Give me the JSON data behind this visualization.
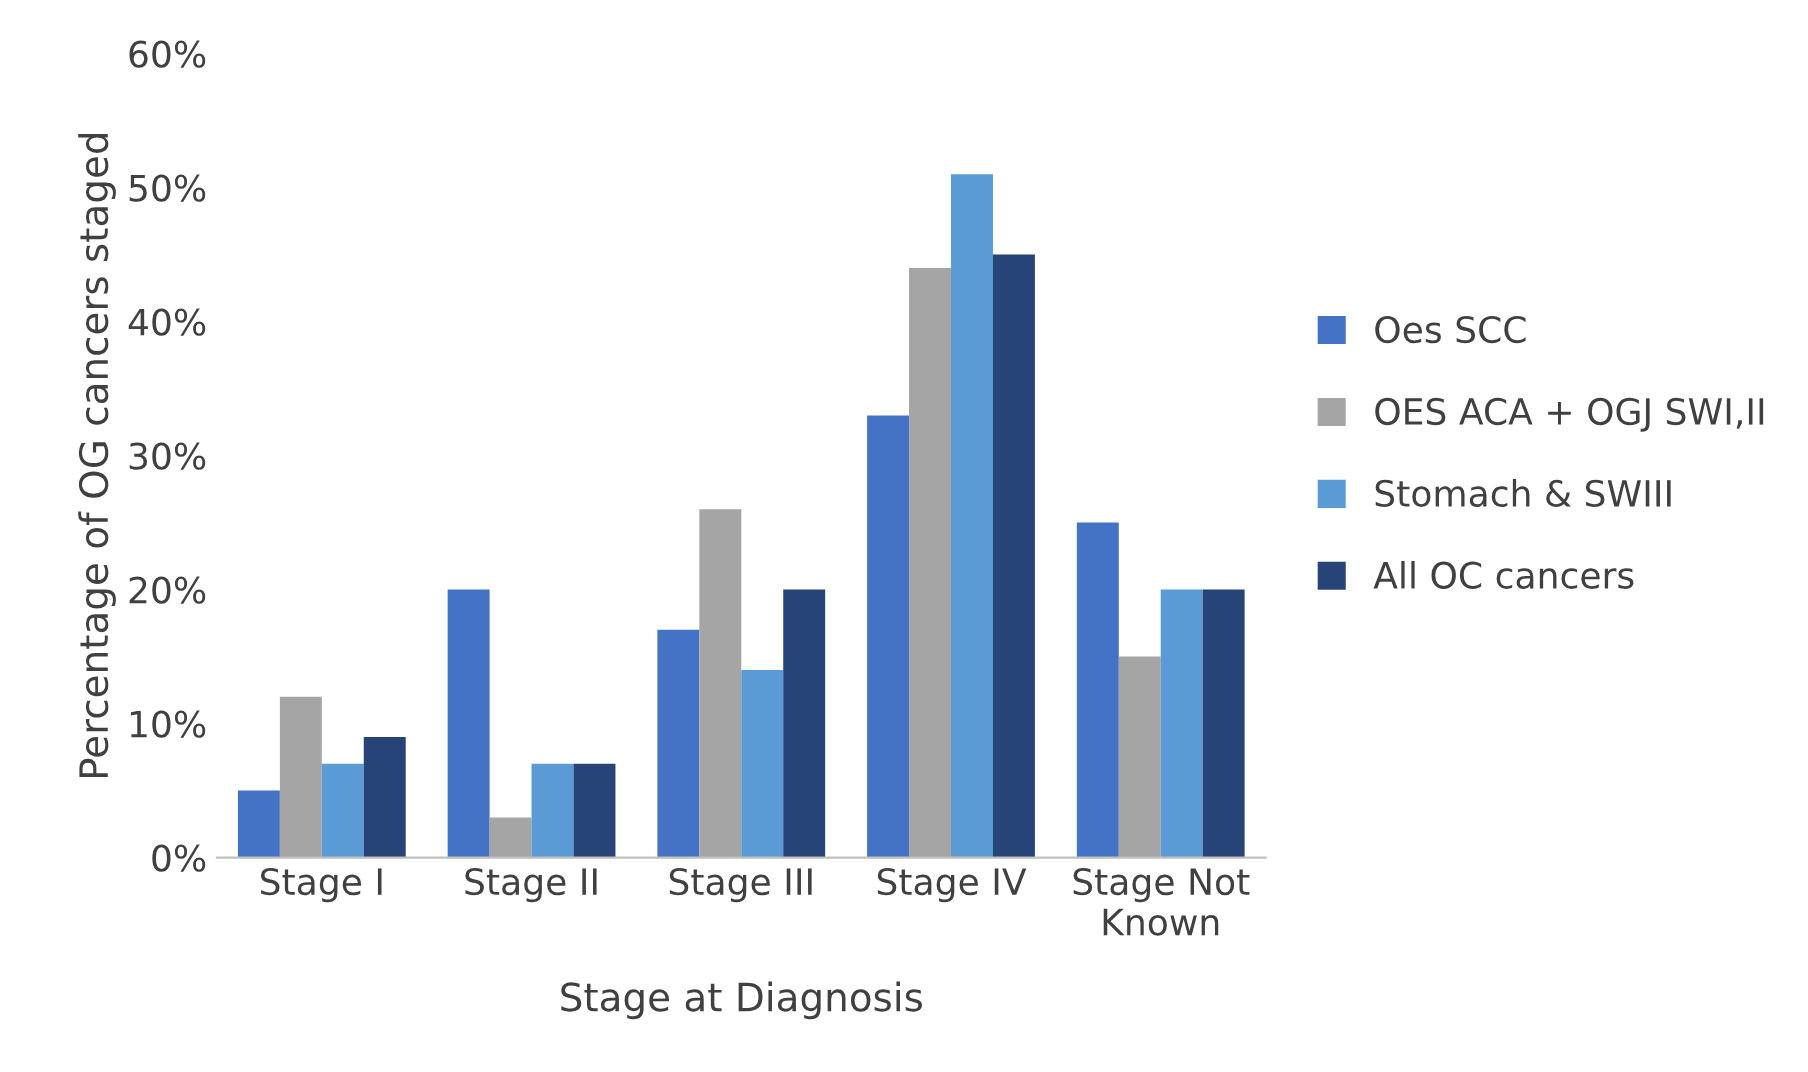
{
  "chart_data": {
    "type": "bar",
    "xlabel": "Stage at Diagnosis",
    "ylabel": "Percentage of OG cancers staged",
    "categories": [
      "Stage I",
      "Stage II",
      "Stage III",
      "Stage IV",
      "Stage Not\nKnown"
    ],
    "series": [
      {
        "name": "Oes SCC",
        "color": "#4472c4",
        "values": [
          5,
          20,
          17,
          33,
          25
        ]
      },
      {
        "name": "OES ACA + OGJ SWI,II",
        "color": "#a5a5a5",
        "values": [
          12,
          3,
          26,
          44,
          15
        ]
      },
      {
        "name": "Stomach & SWIII",
        "color": "#5b9bd5",
        "values": [
          7,
          7,
          14,
          51,
          20
        ]
      },
      {
        "name": "All OC cancers",
        "color": "#264478",
        "values": [
          9,
          7,
          20,
          45,
          20
        ]
      }
    ],
    "ylim": [
      0,
      60
    ],
    "yticks": [
      {
        "value": 0,
        "label": "0%"
      },
      {
        "value": 10,
        "label": "10%"
      },
      {
        "value": 20,
        "label": "20%"
      },
      {
        "value": 30,
        "label": "30%"
      },
      {
        "value": 40,
        "label": "40%"
      },
      {
        "value": 50,
        "label": "50%"
      },
      {
        "value": 60,
        "label": "60%"
      }
    ],
    "grid": false,
    "legend": "right"
  }
}
